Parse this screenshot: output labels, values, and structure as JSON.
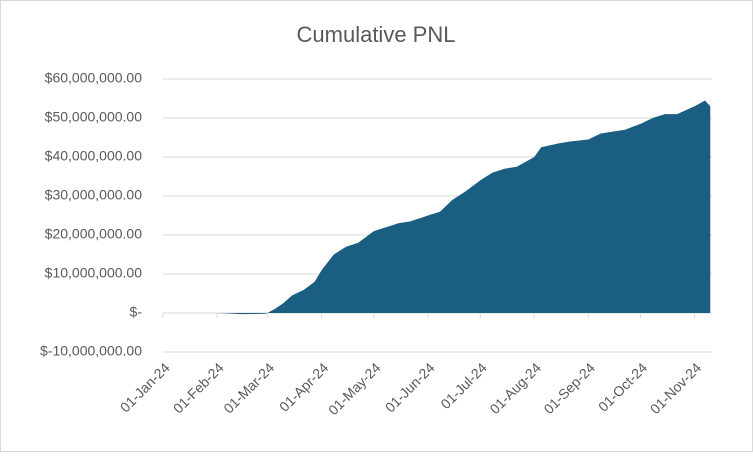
{
  "chart_data": {
    "type": "area",
    "title": "Cumulative PNL",
    "x": [
      "01-Feb-24",
      "15-Feb-24",
      "29-Feb-24",
      "05-Mar-24",
      "10-Mar-24",
      "15-Mar-24",
      "22-Mar-24",
      "28-Mar-24",
      "01-Apr-24",
      "08-Apr-24",
      "15-Apr-24",
      "22-Apr-24",
      "01-May-24",
      "08-May-24",
      "15-May-24",
      "22-May-24",
      "01-Jun-24",
      "08-Jun-24",
      "15-Jun-24",
      "22-Jun-24",
      "01-Jul-24",
      "08-Jul-24",
      "15-Jul-24",
      "22-Jul-24",
      "01-Aug-24",
      "05-Aug-24",
      "15-Aug-24",
      "22-Aug-24",
      "01-Sep-24",
      "08-Sep-24",
      "15-Sep-24",
      "22-Sep-24",
      "01-Oct-24",
      "08-Oct-24",
      "15-Oct-24",
      "22-Oct-24",
      "01-Nov-24",
      "07-Nov-24",
      "10-Nov-24"
    ],
    "values": [
      0,
      -300000,
      -200000,
      1000000,
      2500000,
      4500000,
      6000000,
      8000000,
      11000000,
      15000000,
      17000000,
      18000000,
      21000000,
      22000000,
      23000000,
      23500000,
      25000000,
      26000000,
      29000000,
      31000000,
      34000000,
      36000000,
      37000000,
      37500000,
      40000000,
      42500000,
      43500000,
      44000000,
      44500000,
      46000000,
      46500000,
      47000000,
      48500000,
      50000000,
      51000000,
      51000000,
      53000000,
      54500000,
      53000000
    ],
    "color": "#1a5f82",
    "xlim": [
      "01-Jan-24",
      "11-Nov-24"
    ],
    "xticks": [
      "01-Jan-24",
      "01-Feb-24",
      "01-Mar-24",
      "01-Apr-24",
      "01-May-24",
      "01-Jun-24",
      "01-Jul-24",
      "01-Aug-24",
      "01-Sep-24",
      "01-Oct-24",
      "01-Nov-24"
    ],
    "ylim": [
      -10000000,
      60000000
    ],
    "yticks": [
      {
        "value": -10000000,
        "label": "$-10,000,000.00"
      },
      {
        "value": 0,
        "label": "$-"
      },
      {
        "value": 10000000,
        "label": "$10,000,000.00"
      },
      {
        "value": 20000000,
        "label": "$20,000,000.00"
      },
      {
        "value": 30000000,
        "label": "$30,000,000.00"
      },
      {
        "value": 40000000,
        "label": "$40,000,000.00"
      },
      {
        "value": 50000000,
        "label": "$50,000,000.00"
      },
      {
        "value": 60000000,
        "label": "$60,000,000.00"
      }
    ],
    "grid": true
  }
}
